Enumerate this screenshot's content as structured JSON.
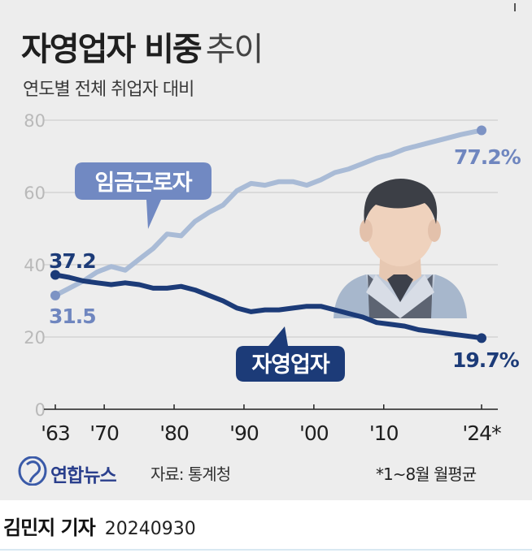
{
  "header": {
    "title": "자영업자 비중",
    "title_suffix": "추이",
    "subtitle": "연도별 전체 취업자 대비"
  },
  "chart_data": {
    "type": "line",
    "title": "자영업자 비중 추이",
    "subtitle": "연도별 전체 취업자 대비",
    "ylim": [
      0,
      80
    ],
    "yticks": [
      "0",
      "20",
      "40",
      "60",
      "80"
    ],
    "xtick_years": [
      1963,
      1970,
      1980,
      1990,
      2000,
      2010,
      2024
    ],
    "xticks": [
      "'63",
      "'70",
      "'80",
      "'90",
      "'00",
      "'10",
      "'24*"
    ],
    "grid": true,
    "series": [
      {
        "name": "임금근로자",
        "color": "#a9bbd6",
        "marker_color": "#7d93c4",
        "label_color": "#6f86bf",
        "x": [
          1963,
          1965,
          1967,
          1969,
          1971,
          1973,
          1975,
          1977,
          1979,
          1981,
          1983,
          1985,
          1987,
          1989,
          1991,
          1993,
          1995,
          1997,
          1999,
          2001,
          2003,
          2005,
          2007,
          2009,
          2011,
          2013,
          2015,
          2017,
          2019,
          2021,
          2023,
          2024
        ],
        "values": [
          31.5,
          33.5,
          35.5,
          38.0,
          39.5,
          38.5,
          41.5,
          44.5,
          48.5,
          48.0,
          52.0,
          54.5,
          56.5,
          60.5,
          62.5,
          62.0,
          63.0,
          63.0,
          62.0,
          63.5,
          65.5,
          66.5,
          68.0,
          69.5,
          70.5,
          72.0,
          73.0,
          74.0,
          75.0,
          76.0,
          76.8,
          77.2
        ],
        "start_label": "31.5",
        "end_label": "77.2%"
      },
      {
        "name": "자영업자",
        "color": "#1c3b78",
        "marker_color": "#1c3b78",
        "label_color": "#1c3b78",
        "x": [
          1963,
          1965,
          1967,
          1969,
          1971,
          1973,
          1975,
          1977,
          1979,
          1981,
          1983,
          1985,
          1987,
          1989,
          1991,
          1993,
          1995,
          1997,
          1999,
          2001,
          2003,
          2005,
          2007,
          2009,
          2011,
          2013,
          2015,
          2017,
          2019,
          2021,
          2023,
          2024
        ],
        "values": [
          37.2,
          36.5,
          35.5,
          35.0,
          34.5,
          35.0,
          34.5,
          33.5,
          33.5,
          34.0,
          33.0,
          31.5,
          30.0,
          28.0,
          27.0,
          27.5,
          27.5,
          28.0,
          28.5,
          28.5,
          27.5,
          26.5,
          25.5,
          24.0,
          23.5,
          23.0,
          22.0,
          21.5,
          21.0,
          20.5,
          20.0,
          19.7
        ],
        "start_label": "37.2",
        "end_label": "19.7%"
      }
    ]
  },
  "footer": {
    "brand": "연합뉴스",
    "source": "자료: 통계청",
    "note": "*1~8월 월평균"
  },
  "byline": {
    "reporter": "김민지 기자",
    "date": "20240930"
  }
}
